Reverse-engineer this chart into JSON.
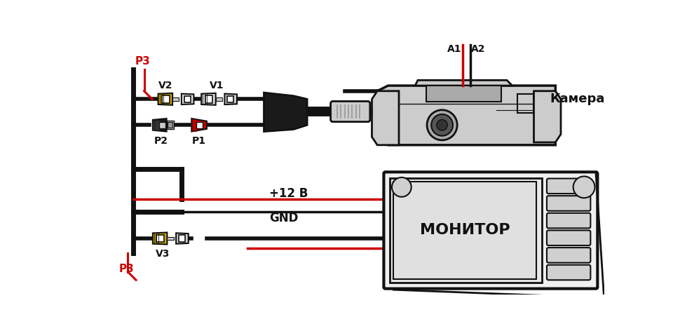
{
  "background_color": "#ffffff",
  "figsize": [
    9.6,
    4.72
  ],
  "dpi": 100,
  "labels": {
    "P3_top": "P3",
    "P3_bot": "P3",
    "V2": "V2",
    "V1": "V1",
    "P2": "P2",
    "P1": "P1",
    "V3": "V3",
    "A1": "A1",
    "A2": "A2",
    "camera": "Камера",
    "plus12": "+12 В",
    "gnd": "GND",
    "monitor": "МОНИТОР"
  },
  "colors": {
    "black": "#111111",
    "red": "#cc0000",
    "yellow": "#d4a800",
    "gray": "#aaaaaa",
    "dark_gray": "#555555",
    "white": "#ffffff",
    "light_gray": "#cccccc",
    "med_gray": "#999999"
  }
}
